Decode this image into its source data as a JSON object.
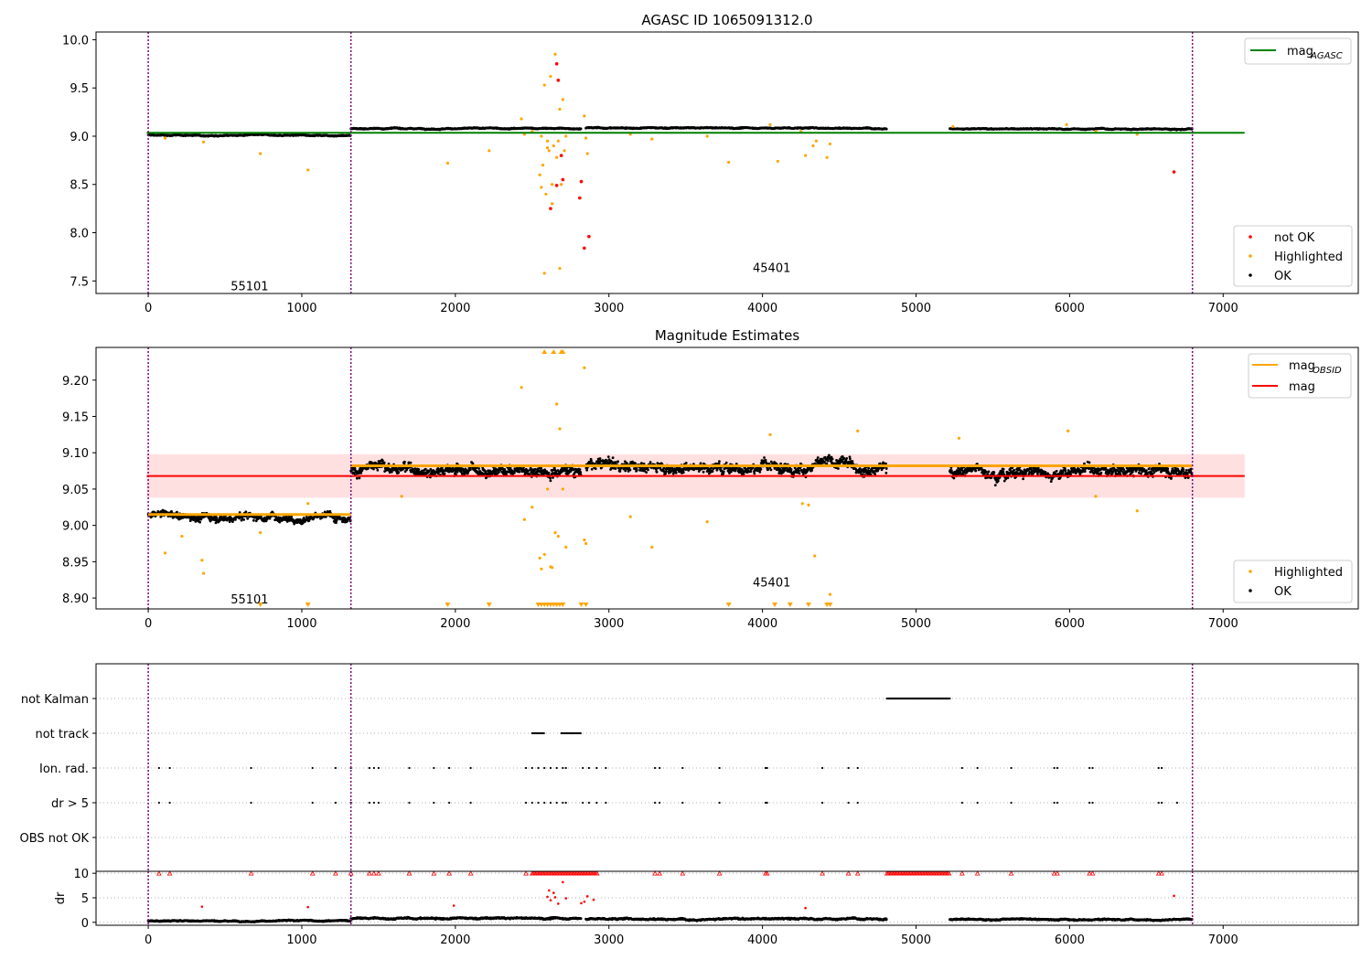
{
  "chart_data": [
    {
      "type": "scatter",
      "title": "AGASC ID 1065091312.0",
      "xlabel": "",
      "ylabel": "",
      "xlim": [
        -340,
        7880
      ],
      "ylim": [
        7.37,
        10.08
      ],
      "xticks": [
        0,
        1000,
        2000,
        3000,
        4000,
        5000,
        6000,
        7000
      ],
      "yticks": [
        7.5,
        8.0,
        8.5,
        9.0,
        9.5,
        10.0
      ],
      "ytick_labels": [
        "7.5",
        "8.0",
        "8.5",
        "9.0",
        "9.5",
        "10.0"
      ],
      "obsid_boundaries": [
        0,
        1320,
        6800
      ],
      "obsid_labels": [
        {
          "text": "55101",
          "x": 660,
          "y": 7.45
        },
        {
          "text": "45401",
          "x": 4060,
          "y": 7.64
        }
      ],
      "mag_agasc": {
        "value": 9.035,
        "x": [
          -10,
          7140
        ],
        "color": "#008000"
      },
      "legend_lines": [
        {
          "label": "mag",
          "sub": "AGASC",
          "color": "#008000"
        }
      ],
      "legend_points": [
        {
          "label": "not OK",
          "color": "#ff0000"
        },
        {
          "label": "Highlighted",
          "color": "#ffa500"
        },
        {
          "label": "OK",
          "color": "#000000"
        }
      ],
      "ok_segments": [
        {
          "x0": 0,
          "x1": 1320,
          "level": 9.01,
          "spread": 0.012
        },
        {
          "x0": 1320,
          "x1": 2820,
          "level": 9.08,
          "spread": 0.012
        },
        {
          "x0": 2850,
          "x1": 4810,
          "level": 9.085,
          "spread": 0.012
        },
        {
          "x0": 5220,
          "x1": 6800,
          "level": 9.075,
          "spread": 0.012
        }
      ],
      "highlighted_points": [
        [
          110,
          8.98
        ],
        [
          360,
          8.94
        ],
        [
          730,
          8.82
        ],
        [
          1040,
          8.65
        ],
        [
          1950,
          8.72
        ],
        [
          2220,
          8.85
        ],
        [
          2430,
          9.18
        ],
        [
          2450,
          9.02
        ],
        [
          2500,
          9.05
        ],
        [
          2550,
          8.6
        ],
        [
          2560,
          9.0
        ],
        [
          2570,
          8.7
        ],
        [
          2580,
          9.53
        ],
        [
          2590,
          8.4
        ],
        [
          2600,
          8.95
        ],
        [
          2610,
          8.85
        ],
        [
          2620,
          9.62
        ],
        [
          2630,
          8.5
        ],
        [
          2640,
          8.9
        ],
        [
          2650,
          9.85
        ],
        [
          2660,
          8.78
        ],
        [
          2670,
          8.95
        ],
        [
          2680,
          9.28
        ],
        [
          2690,
          8.5
        ],
        [
          2700,
          9.38
        ],
        [
          2710,
          8.85
        ],
        [
          2720,
          9.0
        ],
        [
          2680,
          7.63
        ],
        [
          2580,
          7.58
        ],
        [
          2630,
          8.3
        ],
        [
          2560,
          8.47
        ],
        [
          2600,
          8.88
        ],
        [
          2840,
          9.21
        ],
        [
          2850,
          8.98
        ],
        [
          2860,
          8.82
        ],
        [
          3140,
          9.02
        ],
        [
          3280,
          8.97
        ],
        [
          3640,
          9.0
        ],
        [
          3780,
          8.73
        ],
        [
          4050,
          9.12
        ],
        [
          4100,
          8.74
        ],
        [
          4250,
          9.05
        ],
        [
          4280,
          8.8
        ],
        [
          4330,
          8.9
        ],
        [
          4350,
          8.95
        ],
        [
          4420,
          8.78
        ],
        [
          4440,
          8.92
        ],
        [
          5240,
          9.1
        ],
        [
          5980,
          9.12
        ],
        [
          6170,
          9.05
        ],
        [
          6440,
          9.02
        ]
      ],
      "not_ok_points": [
        [
          2660,
          9.75
        ],
        [
          2670,
          9.58
        ],
        [
          2620,
          8.25
        ],
        [
          2660,
          8.49
        ],
        [
          2820,
          8.53
        ],
        [
          2810,
          8.36
        ],
        [
          2840,
          7.84
        ],
        [
          2870,
          7.96
        ],
        [
          2700,
          8.55
        ],
        [
          2690,
          8.8
        ],
        [
          6680,
          8.63
        ]
      ]
    },
    {
      "type": "scatter",
      "title": "Magnitude Estimates",
      "xlabel": "",
      "ylabel": "",
      "xlim": [
        -340,
        7880
      ],
      "ylim": [
        8.885,
        9.245
      ],
      "xticks": [
        0,
        1000,
        2000,
        3000,
        4000,
        5000,
        6000,
        7000
      ],
      "yticks": [
        8.9,
        8.95,
        9.0,
        9.05,
        9.1,
        9.15,
        9.2
      ],
      "ytick_labels": [
        "8.90",
        "8.95",
        "9.00",
        "9.05",
        "9.10",
        "9.15",
        "9.20"
      ],
      "obsid_boundaries": [
        0,
        1320,
        6800
      ],
      "obsid_labels": [
        {
          "text": "55101",
          "x": 660,
          "y": 8.899
        },
        {
          "text": "45401",
          "x": 4060,
          "y": 8.922
        }
      ],
      "mag": {
        "value": 9.068,
        "band": [
          9.038,
          9.098
        ],
        "x": [
          -10,
          7140
        ],
        "color": "#ff0000"
      },
      "mag_obsid": [
        {
          "x0": 0,
          "x1": 1320,
          "value": 9.015
        },
        {
          "x0": 1320,
          "x1": 6800,
          "value": 9.082
        }
      ],
      "legend_lines": [
        {
          "label": "mag",
          "sub": "OBSID",
          "color": "#ffa500"
        },
        {
          "label": "mag",
          "sub": "",
          "color": "#ff0000"
        }
      ],
      "legend_points": [
        {
          "label": "Highlighted",
          "color": "#ffa500"
        },
        {
          "label": "OK",
          "color": "#000000"
        }
      ],
      "ok_segments": [
        {
          "x0": 0,
          "x1": 1320,
          "level": 9.013,
          "spread": 0.012
        },
        {
          "x0": 1320,
          "x1": 2820,
          "level": 9.078,
          "spread": 0.016
        },
        {
          "x0": 2850,
          "x1": 4810,
          "level": 9.082,
          "spread": 0.016
        },
        {
          "x0": 5220,
          "x1": 6800,
          "level": 9.075,
          "spread": 0.016
        }
      ],
      "highlighted_points": [
        [
          110,
          8.962
        ],
        [
          220,
          8.985
        ],
        [
          350,
          8.952
        ],
        [
          360,
          8.934
        ],
        [
          730,
          8.99
        ],
        [
          1040,
          9.03
        ],
        [
          1650,
          9.04
        ],
        [
          2430,
          9.19
        ],
        [
          2450,
          9.008
        ],
        [
          2500,
          9.025
        ],
        [
          2550,
          8.955
        ],
        [
          2560,
          8.94
        ],
        [
          2580,
          8.96
        ],
        [
          2600,
          9.05
        ],
        [
          2620,
          8.943
        ],
        [
          2630,
          8.942
        ],
        [
          2650,
          8.99
        ],
        [
          2660,
          9.167
        ],
        [
          2670,
          8.985
        ],
        [
          2680,
          9.133
        ],
        [
          2700,
          9.05
        ],
        [
          2720,
          8.97
        ],
        [
          2840,
          8.98
        ],
        [
          2840,
          9.217
        ],
        [
          2850,
          8.975
        ],
        [
          3140,
          9.012
        ],
        [
          3280,
          8.97
        ],
        [
          3640,
          9.005
        ],
        [
          4050,
          9.125
        ],
        [
          4260,
          9.03
        ],
        [
          4300,
          9.028
        ],
        [
          4340,
          8.958
        ],
        [
          4440,
          8.905
        ],
        [
          4620,
          9.13
        ],
        [
          5280,
          9.12
        ],
        [
          5990,
          9.13
        ],
        [
          6170,
          9.04
        ],
        [
          6440,
          9.02
        ]
      ],
      "highlighted_low_x": [
        730,
        1040,
        1950,
        2220,
        2540,
        2560,
        2580,
        2600,
        2620,
        2640,
        2660,
        2680,
        2700,
        2820,
        2850,
        3780,
        4080,
        4180,
        4300,
        4420,
        4440
      ],
      "highlighted_high_x": [
        2580,
        2640,
        2690,
        2700
      ]
    },
    {
      "type": "scatter",
      "title": "",
      "xlabel": "",
      "ylabel": "",
      "xlim": [
        -340,
        7880
      ],
      "categories": [
        "not Kalman",
        "not track",
        "Ion. rad.",
        "dr > 5",
        "OBS not OK"
      ],
      "obsid_boundaries": [
        0,
        1320,
        6800
      ],
      "not_kalman": [
        [
          4810,
          5220
        ]
      ],
      "not_track": [
        [
          2500,
          2580
        ],
        [
          2690,
          2820
        ]
      ],
      "ion_rad_x": [
        70,
        140,
        670,
        1070,
        1220,
        1320,
        1440,
        1470,
        1500,
        1700,
        1860,
        1960,
        2100,
        2460,
        2500,
        2540,
        2580,
        2620,
        2660,
        2700,
        2720,
        2830,
        2870,
        2920,
        2980,
        3300,
        3330,
        3480,
        3720,
        4020,
        4030,
        4390,
        4560,
        4620,
        5300,
        5400,
        5620,
        5900,
        5920,
        6130,
        6150,
        6580,
        6600
      ],
      "dr5_x": [
        70,
        140,
        670,
        1070,
        1220,
        1320,
        1440,
        1470,
        1500,
        1700,
        1860,
        1960,
        2100,
        2460,
        2500,
        2540,
        2580,
        2620,
        2660,
        2700,
        2720,
        2830,
        2870,
        2920,
        2980,
        3300,
        3330,
        3480,
        3720,
        4020,
        4030,
        4390,
        4560,
        4620,
        5300,
        5400,
        5620,
        5900,
        5920,
        6130,
        6150,
        6580,
        6600,
        6700
      ]
    },
    {
      "type": "scatter",
      "title": "",
      "xlabel": "",
      "ylabel": "dr",
      "xlim": [
        -340,
        7880
      ],
      "ylim": [
        -0.6,
        10.4
      ],
      "yticks": [
        0,
        5,
        10
      ],
      "xticks": [
        0,
        1000,
        2000,
        3000,
        4000,
        5000,
        6000,
        7000
      ],
      "obsid_boundaries": [
        0,
        1320,
        6800
      ],
      "ok_segments": [
        {
          "x0": 0,
          "x1": 1320,
          "level": 0.3,
          "spread": 0.25
        },
        {
          "x0": 1320,
          "x1": 2820,
          "level": 0.8,
          "spread": 0.35
        },
        {
          "x0": 2850,
          "x1": 4810,
          "level": 0.7,
          "spread": 0.35
        },
        {
          "x0": 5220,
          "x1": 6800,
          "level": 0.6,
          "spread": 0.3
        }
      ],
      "red_dr_points": [
        [
          350,
          3.2
        ],
        [
          1040,
          3.1
        ],
        [
          1990,
          3.4
        ],
        [
          2600,
          5.2
        ],
        [
          2610,
          6.5
        ],
        [
          2620,
          4.5
        ],
        [
          2640,
          6.0
        ],
        [
          2650,
          5.1
        ],
        [
          2670,
          3.8
        ],
        [
          2700,
          8.2
        ],
        [
          2720,
          4.9
        ],
        [
          2820,
          3.9
        ],
        [
          2840,
          4.2
        ],
        [
          2860,
          5.3
        ],
        [
          2900,
          4.6
        ],
        [
          4280,
          2.9
        ],
        [
          6680,
          5.4
        ]
      ],
      "clip10_x": [
        70,
        140,
        670,
        1070,
        1220,
        1320,
        1440,
        1470,
        1500,
        1700,
        1860,
        1960,
        2100,
        2460,
        3300,
        3330,
        3480,
        3720,
        4020,
        4030,
        4390,
        4560,
        4620,
        5300,
        5400,
        5620,
        5900,
        5920,
        6130,
        6150,
        6580,
        6600
      ],
      "clip10_ranges": [
        [
          2500,
          2930
        ],
        [
          4810,
          5220
        ]
      ]
    }
  ]
}
